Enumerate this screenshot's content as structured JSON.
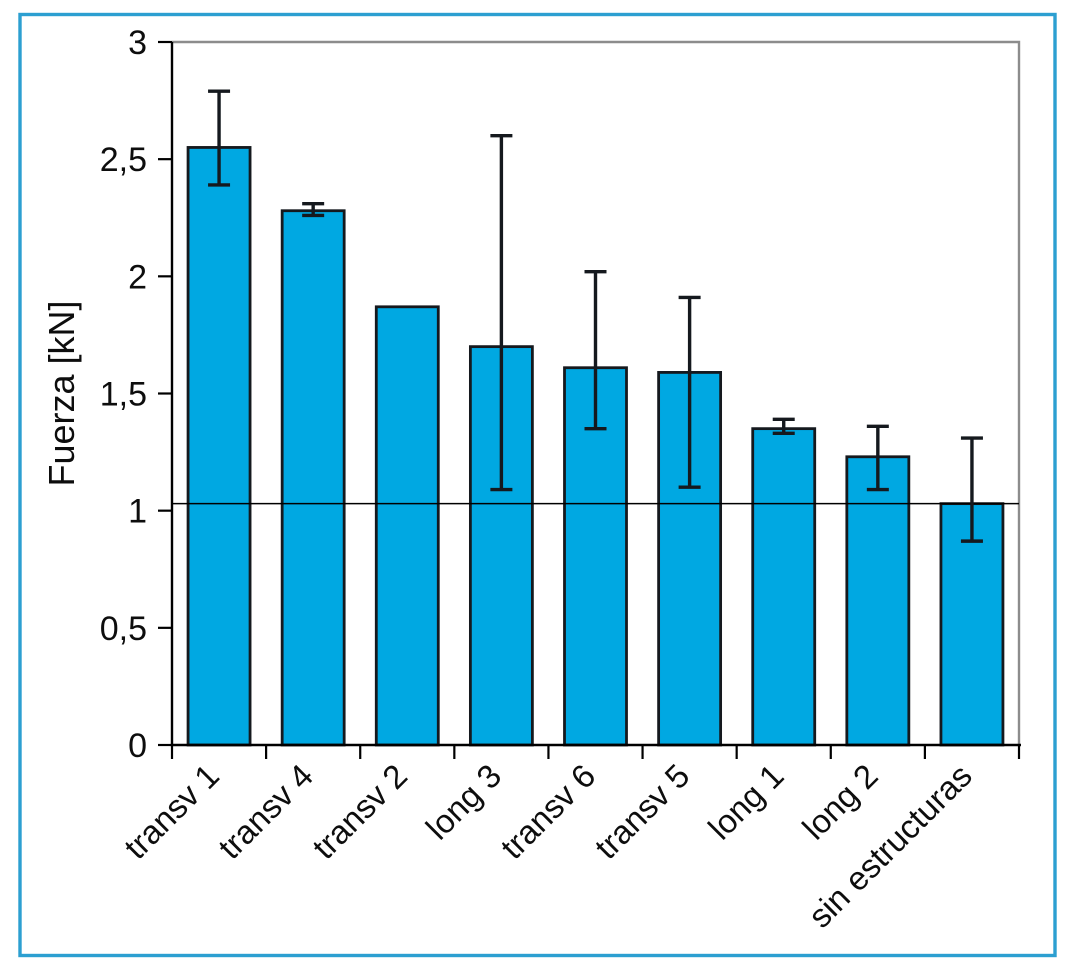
{
  "figure": {
    "frame_color": "#2c9fd1",
    "background": "#ffffff"
  },
  "chart_data": {
    "type": "bar",
    "title": "",
    "xlabel": "",
    "ylabel": "Fuerza [kN]",
    "ylim": [
      0,
      3
    ],
    "ytick_step": 0.5,
    "ytick_labels": [
      "0",
      "0,5",
      "1",
      "1,5",
      "2",
      "2,5",
      "3"
    ],
    "decimal_separator": ",",
    "grid": false,
    "legend": null,
    "categories": [
      "transv 1",
      "transv 4",
      "transv 2",
      "long 3",
      "transv 6",
      "transv 5",
      "long 1",
      "long 2",
      "sin estructuras"
    ],
    "values": [
      2.55,
      2.28,
      1.87,
      1.7,
      1.61,
      1.59,
      1.35,
      1.23,
      1.03
    ],
    "error_low": [
      2.39,
      2.26,
      null,
      1.09,
      1.35,
      1.1,
      1.33,
      1.09,
      0.87
    ],
    "error_high": [
      2.79,
      2.31,
      null,
      2.6,
      2.02,
      1.91,
      1.39,
      1.36,
      1.31
    ],
    "reference_line": 1.03,
    "bar_color": "#00a8e2",
    "bar_outline_color": "#15191e",
    "error_bar_color": "#15191e",
    "axis_color": "#000000",
    "plot_border_color": "#8c8c8c",
    "text_color": "#0d0d0d",
    "xlabel_rotation_deg": -45
  }
}
